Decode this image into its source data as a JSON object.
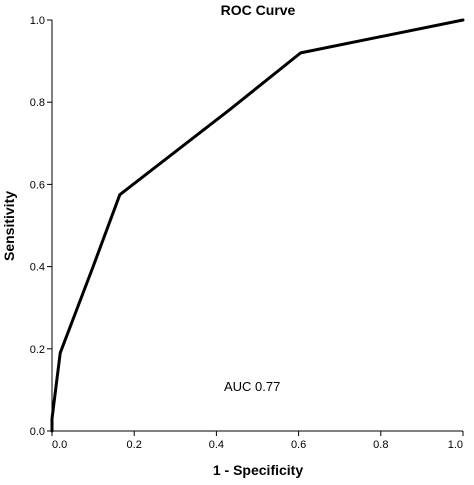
{
  "chart_data": {
    "type": "line",
    "title": "ROC Curve",
    "xlabel": "1 - Specificity",
    "ylabel": "Sensitivity",
    "xlim": [
      0.0,
      1.0
    ],
    "ylim": [
      0.0,
      1.0
    ],
    "x_ticks": [
      "0.0",
      "0.2",
      "0.4",
      "0.6",
      "0.8",
      "1.0"
    ],
    "y_ticks": [
      "0.0",
      "0.2",
      "0.4",
      "0.6",
      "0.8",
      "1.0"
    ],
    "grid": false,
    "series": [
      {
        "x": [
          0.0,
          0.0,
          0.02,
          0.1,
          0.165,
          0.43,
          0.605,
          1.0
        ],
        "y": [
          0.0,
          0.03,
          0.19,
          0.4,
          0.575,
          0.78,
          0.92,
          1.0
        ],
        "color": "#000000"
      }
    ],
    "annotation": "AUC 0.77"
  }
}
